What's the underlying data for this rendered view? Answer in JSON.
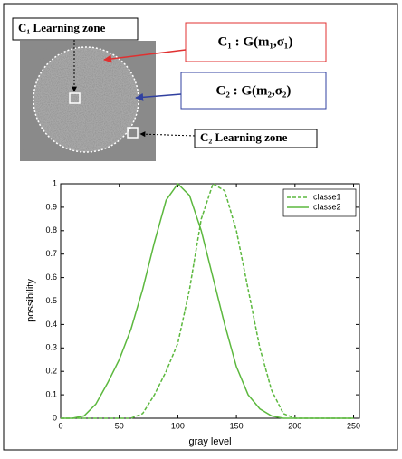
{
  "figure": {
    "labels": [
      "C₁ Learning zone",
      "C₁ : Ǥ(m₁,σ₁)",
      "C₂ : Ǥ(m₂,σ₂)",
      "C₂ Learning zone"
    ]
  },
  "chart_data": {
    "type": "line",
    "xlabel": "gray level",
    "ylabel": "possibility",
    "x": [
      0,
      10,
      20,
      30,
      40,
      50,
      60,
      70,
      80,
      90,
      100,
      110,
      120,
      130,
      140,
      150,
      160,
      170,
      180,
      190,
      200,
      210,
      220,
      230,
      240,
      250
    ],
    "series": [
      {
        "name": "classe1",
        "color": "#5cb83e",
        "dash": true,
        "values": [
          0,
          0,
          0,
          0,
          0,
          0,
          0,
          0.02,
          0.1,
          0.2,
          0.32,
          0.55,
          0.85,
          1,
          0.97,
          0.8,
          0.55,
          0.3,
          0.12,
          0.02,
          0,
          0,
          0,
          0,
          0,
          0
        ]
      },
      {
        "name": "classe2",
        "color": "#5cb83e",
        "dash": false,
        "values": [
          0,
          0,
          0.01,
          0.06,
          0.15,
          0.25,
          0.38,
          0.55,
          0.75,
          0.93,
          1,
          0.95,
          0.8,
          0.6,
          0.4,
          0.22,
          0.1,
          0.04,
          0.01,
          0,
          0,
          0,
          0,
          0,
          0,
          0
        ]
      }
    ],
    "xlim": [
      0,
      255
    ],
    "xticks": [
      0,
      50,
      100,
      150,
      200,
      250
    ],
    "ylim": [
      0,
      1
    ],
    "yticks": [
      0,
      0.1,
      0.2,
      0.3,
      0.4,
      0.5,
      0.6,
      0.7,
      0.8,
      0.9,
      1
    ],
    "legend": "upper right"
  }
}
